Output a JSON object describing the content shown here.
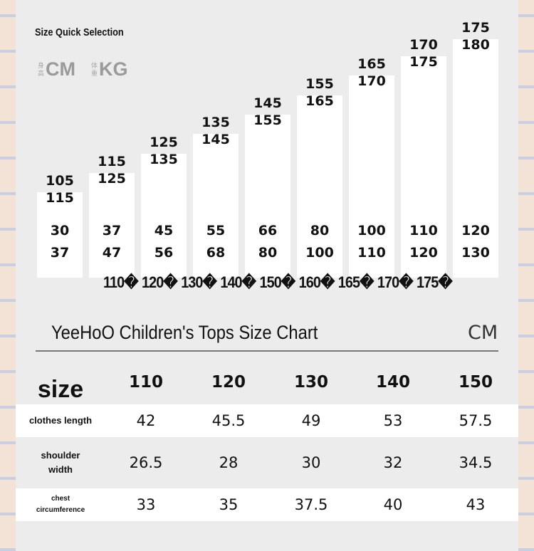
{
  "quick_selection": {
    "title": "Size Quick Selection",
    "height_unit": {
      "zh": "身高",
      "label": "CM"
    },
    "weight_unit": {
      "zh": "体重",
      "label": "KG"
    },
    "columns": [
      {
        "height_from": "105",
        "height_to": "115",
        "weight_from": "30",
        "weight_to": "37",
        "size": "110�"
      },
      {
        "height_from": "115",
        "height_to": "125",
        "weight_from": "37",
        "weight_to": "47",
        "size": "120�"
      },
      {
        "height_from": "125",
        "height_to": "135",
        "weight_from": "45",
        "weight_to": "56",
        "size": "130�"
      },
      {
        "height_from": "135",
        "height_to": "145",
        "weight_from": "55",
        "weight_to": "68",
        "size": "140�"
      },
      {
        "height_from": "145",
        "height_to": "155",
        "weight_from": "66",
        "weight_to": "80",
        "size": "150�"
      },
      {
        "height_from": "155",
        "height_to": "165",
        "weight_from": "80",
        "weight_to": "100",
        "size": "160�"
      },
      {
        "height_from": "165",
        "height_to": "170",
        "weight_from": "100",
        "weight_to": "110",
        "size": "165�"
      },
      {
        "height_from": "170",
        "height_to": "175",
        "weight_from": "110",
        "weight_to": "120",
        "size": "170�"
      },
      {
        "height_from": "175",
        "height_to": "180",
        "weight_from": "120",
        "weight_to": "130",
        "size": "175�"
      }
    ]
  },
  "size_chart": {
    "title": "YeeHoO Children's Tops Size Chart",
    "unit": "CM",
    "header_label": "size",
    "sizes": [
      "110",
      "120",
      "130",
      "140",
      "150"
    ],
    "rows": [
      {
        "label": "clothes length",
        "values": [
          "42",
          "45.5",
          "49",
          "53",
          "57.5"
        ]
      },
      {
        "label": "shoulder width",
        "values": [
          "26.5",
          "28",
          "30",
          "32",
          "34.5"
        ]
      },
      {
        "label": "chest circumference",
        "values": [
          "33",
          "35",
          "37.5",
          "40",
          "43"
        ]
      }
    ]
  }
}
